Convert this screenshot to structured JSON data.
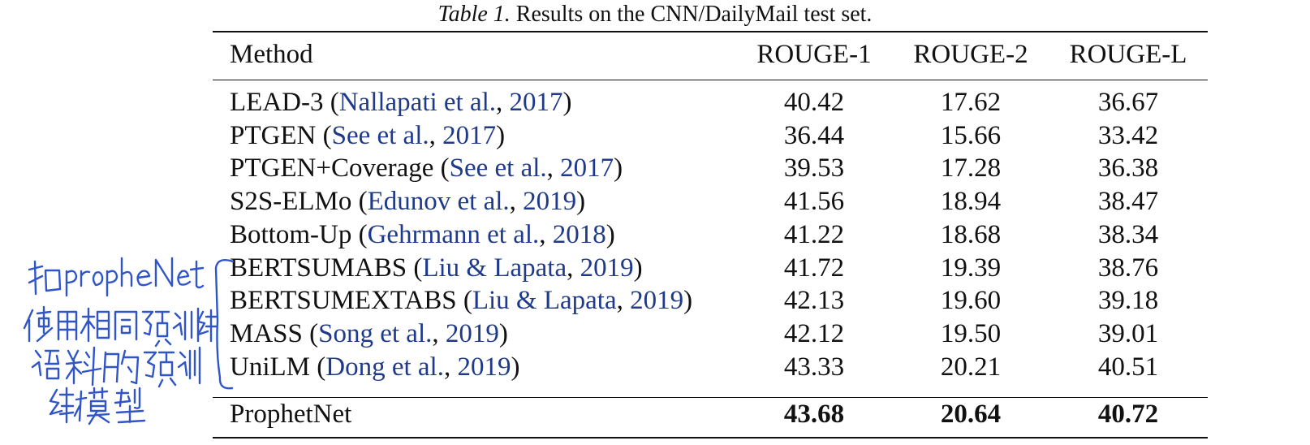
{
  "caption": {
    "label": "Table 1.",
    "text": "Results on the CNN/DailyMail test set."
  },
  "headers": [
    "Method",
    "ROUGE-1",
    "ROUGE-2",
    "ROUGE-L"
  ],
  "rows": [
    {
      "name": "LEAD-3",
      "cite_open": " (",
      "cite_authors": "Nallapati et al.",
      "cite_sep": ", ",
      "cite_year": "2017",
      "cite_close": ")",
      "r1": "40.42",
      "r2": "17.62",
      "rl": "36.67"
    },
    {
      "name": "PTGEN",
      "cite_open": " (",
      "cite_authors": "See et al.",
      "cite_sep": ", ",
      "cite_year": "2017",
      "cite_close": ")",
      "r1": "36.44",
      "r2": "15.66",
      "rl": "33.42"
    },
    {
      "name": "PTGEN+Coverage",
      "cite_open": " (",
      "cite_authors": "See et al.",
      "cite_sep": ", ",
      "cite_year": "2017",
      "cite_close": ")",
      "r1": "39.53",
      "r2": "17.28",
      "rl": "36.38"
    },
    {
      "name": "S2S-ELMo",
      "cite_open": " (",
      "cite_authors": "Edunov et al.",
      "cite_sep": ", ",
      "cite_year": "2019",
      "cite_close": ")",
      "r1": "41.56",
      "r2": "18.94",
      "rl": "38.47"
    },
    {
      "name": "Bottom-Up",
      "cite_open": " (",
      "cite_authors": "Gehrmann et al.",
      "cite_sep": ", ",
      "cite_year": "2018",
      "cite_close": ")",
      "r1": "41.22",
      "r2": "18.68",
      "rl": "38.34"
    },
    {
      "name": "BERTSUMABS",
      "cite_open": " (",
      "cite_authors": "Liu & Lapata",
      "cite_sep": ", ",
      "cite_year": "2019",
      "cite_close": ")",
      "r1": "41.72",
      "r2": "19.39",
      "rl": "38.76"
    },
    {
      "name": "BERTSUMEXTABS",
      "cite_open": " (",
      "cite_authors": "Liu & Lapata",
      "cite_sep": ", ",
      "cite_year": "2019",
      "cite_close": ")",
      "r1": "42.13",
      "r2": "19.60",
      "rl": "39.18"
    },
    {
      "name": "MASS",
      "cite_open": " (",
      "cite_authors": "Song et al.",
      "cite_sep": ", ",
      "cite_year": "2019",
      "cite_close": ")",
      "r1": "42.12",
      "r2": "19.50",
      "rl": "39.01"
    },
    {
      "name": "UniLM",
      "cite_open": " (",
      "cite_authors": "Dong et al.",
      "cite_sep": ", ",
      "cite_year": "2019",
      "cite_close": ")",
      "r1": "43.33",
      "r2": "20.21",
      "rl": "40.51"
    }
  ],
  "final_row": {
    "name": "ProphetNet",
    "r1": "43.68",
    "r2": "20.64",
    "rl": "40.72"
  },
  "handwritten_note": {
    "lines": [
      "和propheNet",
      "使用相同预训练",
      "语料的预训",
      "练模型"
    ],
    "color": "#2f55c8"
  },
  "colors": {
    "citation": "#1f3a8a",
    "ink": "#111111"
  }
}
